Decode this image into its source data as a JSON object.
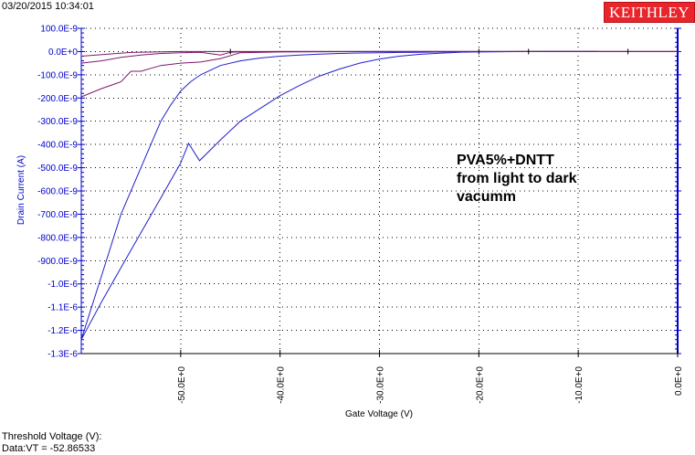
{
  "header": {
    "timestamp": "03/20/2015 10:34:01",
    "brand": "KEITHLEY"
  },
  "footer": {
    "threshold_label": "Threshold Voltage (V):",
    "threshold_value": "Data:VT = -52.86533"
  },
  "colors": {
    "axis": "#0000cc",
    "series_a": "#2020cc",
    "series_b": "#7a1a6a",
    "grid": "#000000",
    "brand": "#e8252b"
  },
  "chart_data": {
    "type": "line",
    "xlabel": "Gate Voltage (V)",
    "ylabel": "Drain Current (A)",
    "xlim": [
      -60,
      0
    ],
    "ylim": [
      -1.3e-06,
      1e-07
    ],
    "grid": true,
    "x_ticks": [
      -50,
      -40,
      -30,
      -20,
      -10,
      0
    ],
    "x_tick_labels": [
      "-50.0E+0",
      "-40.0E+0",
      "-30.0E+0",
      "-20.0E+0",
      "-10.0E+0",
      "0.0E+0"
    ],
    "y_ticks": [
      1e-07,
      0,
      -1e-07,
      -2e-07,
      -3e-07,
      -4e-07,
      -5e-07,
      -6e-07,
      -7e-07,
      -8e-07,
      -9e-07,
      -1e-06,
      -1.1e-06,
      -1.2e-06,
      -1.3e-06
    ],
    "y_tick_labels": [
      "100.0E-9",
      "0.0E+0",
      "-100.0E-9",
      "-200.0E-9",
      "-300.0E-9",
      "-400.0E-9",
      "-500.0E-9",
      "-600.0E-9",
      "-700.0E-9",
      "-800.0E-9",
      "-900.0E-9",
      "-1.0E-6",
      "-1.1E-6",
      "-1.2E-6",
      "-1.3E-6"
    ],
    "annotation": [
      "PVA5%+DNTT",
      "from light to dark",
      "vacumm"
    ],
    "series": [
      {
        "color": "#2020cc",
        "x": [
          -60,
          -58,
          -56,
          -54,
          -53,
          -52,
          -51,
          -50,
          -49,
          -48,
          -46,
          -44,
          -42,
          -40,
          -38,
          -36,
          -34,
          -32,
          -30,
          -28,
          -26,
          -24,
          -22,
          -20,
          -18,
          -14,
          -10,
          -8
        ],
        "y": [
          -1.24e-06,
          -9.7e-07,
          -7e-07,
          -5e-07,
          -4e-07,
          -3e-07,
          -2.3e-07,
          -1.7e-07,
          -1.3e-07,
          -1e-07,
          -6e-08,
          -4e-08,
          -2.8e-08,
          -2e-08,
          -1.5e-08,
          -1.1e-08,
          -8e-09,
          -6e-09,
          -5e-09,
          -4e-09,
          -3e-09,
          -2e-09,
          -1.5e-09,
          -1e-09,
          -5e-10,
          0,
          0,
          0
        ]
      },
      {
        "color": "#2020cc",
        "x": [
          -60,
          -58,
          -56,
          -54,
          -52,
          -50,
          -49.2,
          -48.1,
          -46,
          -44,
          -42,
          -40,
          -38,
          -36,
          -34,
          -32,
          -30,
          -28,
          -26,
          -24,
          -22,
          -20,
          -16,
          -12,
          -8
        ],
        "y": [
          -1.24e-06,
          -1.08e-06,
          -9.3e-07,
          -7.8e-07,
          -6.3e-07,
          -4.8e-07,
          -3.95e-07,
          -4.7e-07,
          -3.8e-07,
          -3e-07,
          -2.45e-07,
          -1.9e-07,
          -1.45e-07,
          -1.05e-07,
          -7.5e-08,
          -5e-08,
          -3.2e-08,
          -2e-08,
          -1.2e-08,
          -7e-09,
          -3e-09,
          -1e-09,
          0,
          0,
          0
        ]
      },
      {
        "color": "#7a1a6a",
        "x": [
          -60,
          -58,
          -56,
          -55,
          -54,
          -52,
          -50,
          -48,
          -46,
          -44,
          -40,
          -30,
          -20,
          -10,
          0
        ],
        "y": [
          -1.95e-07,
          -1.6e-07,
          -1.3e-07,
          -8.5e-08,
          -8.5e-08,
          -6e-08,
          -5e-08,
          -4.5e-08,
          -3e-08,
          -5e-09,
          -2e-09,
          0,
          0,
          0,
          0
        ]
      },
      {
        "color": "#7a1a6a",
        "x": [
          -60,
          -58,
          -56,
          -54,
          -52,
          -50,
          -48,
          -46,
          -45,
          -44,
          -40,
          -30,
          -20,
          -10,
          0
        ],
        "y": [
          -5e-08,
          -4e-08,
          -2.5e-08,
          -1.5e-08,
          -8e-09,
          -5e-09,
          -3e-09,
          -1.5e-08,
          -3e-09,
          -1e-09,
          0,
          0,
          0,
          0,
          0
        ]
      },
      {
        "color": "#7a1a6a",
        "x": [
          -60,
          -57,
          -55,
          -52,
          -50,
          -45,
          -40,
          -30,
          -20,
          -10,
          0
        ],
        "y": [
          -2e-08,
          -1e-08,
          -4e-09,
          -1e-09,
          0,
          0,
          0,
          0,
          0,
          0,
          0
        ]
      }
    ],
    "markers_x": [
      -45,
      -20,
      -15,
      -5
    ]
  }
}
